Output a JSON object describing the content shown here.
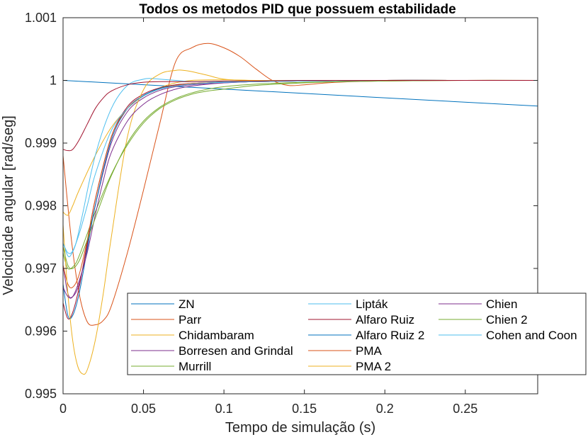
{
  "chart_data": {
    "type": "line",
    "title": "Todos os metodos PID que possuem estabilidade",
    "xlabel": "Tempo de simulação (s)",
    "ylabel": "Velocidade angular [rad/seg]",
    "xlim": [
      0,
      0.295
    ],
    "ylim": [
      0.995,
      1.001
    ],
    "xticks": [
      0,
      0.05,
      0.1,
      0.15,
      0.2,
      0.25
    ],
    "xtick_labels": [
      "0",
      "0.05",
      "0.1",
      "0.15",
      "0.2",
      "0.25"
    ],
    "yticks": [
      0.995,
      0.996,
      0.997,
      0.998,
      0.999,
      1,
      1.001
    ],
    "ytick_labels": [
      "0.995",
      "0.996",
      "0.997",
      "0.998",
      "0.999",
      "1",
      "1.001"
    ],
    "grid": false,
    "legend_position": "bottom-right",
    "legend_columns": 3,
    "series": [
      {
        "name": "ZN",
        "color": "#0072BD",
        "x": [
          0,
          0.295
        ],
        "y": [
          1.0,
          0.99959
        ]
      },
      {
        "name": "Parr",
        "color": "#D95319",
        "x": [
          0,
          0.005,
          0.01,
          0.015,
          0.02,
          0.025,
          0.03,
          0.04,
          0.05,
          0.06,
          0.07,
          0.08,
          0.09,
          0.1,
          0.11,
          0.12,
          0.13,
          0.14,
          0.15,
          0.17,
          0.2,
          0.25,
          0.295
        ],
        "y": [
          0.9988,
          0.9975,
          0.9966,
          0.99615,
          0.9961,
          0.99617,
          0.9964,
          0.99725,
          0.99825,
          0.9993,
          1.0003,
          1.00052,
          1.00059,
          1.00052,
          1.00038,
          1.00018,
          1.0,
          0.99992,
          0.99993,
          0.99997,
          0.99999,
          1.0,
          1.0
        ]
      },
      {
        "name": "Chidambaram",
        "color": "#EDB120",
        "x": [
          0,
          0.003,
          0.006,
          0.01,
          0.02,
          0.03,
          0.04,
          0.05,
          0.06,
          0.07,
          0.08,
          0.1,
          0.12,
          0.15,
          0.2,
          0.25,
          0.295
        ],
        "y": [
          0.9979,
          0.99785,
          0.998,
          0.99825,
          0.9988,
          0.99925,
          0.99955,
          0.99975,
          0.99988,
          0.99996,
          1.0,
          1.00001,
          1.0,
          1.0,
          1.0,
          1.0,
          1.0
        ]
      },
      {
        "name": "Borresen and Grindal",
        "color": "#7E2F8E",
        "x": [
          0,
          0.003,
          0.006,
          0.01,
          0.015,
          0.02,
          0.03,
          0.04,
          0.05,
          0.06,
          0.07,
          0.08,
          0.1,
          0.12,
          0.15,
          0.2,
          0.25,
          0.295
        ],
        "y": [
          0.99705,
          0.9966,
          0.99655,
          0.99675,
          0.99735,
          0.998,
          0.999,
          0.9995,
          0.99972,
          0.99984,
          0.9999,
          0.99993,
          0.99996,
          0.99998,
          0.99999,
          1.0,
          1.0,
          1.0
        ]
      },
      {
        "name": "Murrill",
        "color": "#77AC30",
        "x": [
          0,
          0.003,
          0.007,
          0.01,
          0.015,
          0.02,
          0.03,
          0.04,
          0.05,
          0.06,
          0.07,
          0.08,
          0.09,
          0.1,
          0.12,
          0.15,
          0.2,
          0.25,
          0.295
        ],
        "y": [
          0.99725,
          0.997,
          0.99705,
          0.9972,
          0.99755,
          0.9979,
          0.9985,
          0.99897,
          0.99932,
          0.99955,
          0.99969,
          0.99978,
          0.99983,
          0.99986,
          0.99992,
          0.99996,
          1.0,
          1.0,
          1.0
        ]
      },
      {
        "name": "Lipták",
        "color": "#4DBEEE",
        "x": [
          0,
          0.003,
          0.005,
          0.008,
          0.012,
          0.02,
          0.03,
          0.04,
          0.05,
          0.055,
          0.06,
          0.07,
          0.08,
          0.1,
          0.12,
          0.15,
          0.2,
          0.25,
          0.295
        ],
        "y": [
          0.9974,
          0.9972,
          0.99722,
          0.9974,
          0.99785,
          0.9988,
          0.99955,
          0.99992,
          1.00002,
          1.00003,
          1.00002,
          1.0,
          0.99998,
          0.99998,
          0.99999,
          1.0,
          1.0,
          1.0,
          1.0
        ]
      },
      {
        "name": "Alfaro Ruiz",
        "color": "#A2142F",
        "x": [
          0,
          0.003,
          0.006,
          0.01,
          0.015,
          0.02,
          0.03,
          0.04,
          0.05,
          0.06,
          0.07,
          0.08,
          0.1,
          0.12,
          0.15,
          0.2,
          0.25,
          0.295
        ],
        "y": [
          0.99645,
          0.9962,
          0.9963,
          0.9967,
          0.9974,
          0.9981,
          0.9991,
          0.99958,
          0.99978,
          0.99988,
          0.99993,
          0.99995,
          0.99997,
          0.99998,
          0.99999,
          1.0,
          1.0,
          1.0
        ]
      },
      {
        "name": "Alfaro Ruiz 2",
        "color": "#0072BD",
        "x": [
          0,
          0.003,
          0.006,
          0.01,
          0.015,
          0.02,
          0.03,
          0.04,
          0.05,
          0.06,
          0.07,
          0.08,
          0.1,
          0.12,
          0.15,
          0.2,
          0.25,
          0.295
        ],
        "y": [
          0.99675,
          0.99625,
          0.99625,
          0.9966,
          0.9973,
          0.998,
          0.99905,
          0.99955,
          0.99976,
          0.99987,
          0.99992,
          0.99995,
          0.99997,
          0.99998,
          0.99999,
          1.0,
          1.0,
          1.0
        ]
      },
      {
        "name": "PMA",
        "color": "#D95319",
        "x": [
          0,
          0.003,
          0.006,
          0.01,
          0.015,
          0.02,
          0.03,
          0.04,
          0.05,
          0.06,
          0.07,
          0.08,
          0.1,
          0.12,
          0.15,
          0.2,
          0.25,
          0.295
        ],
        "y": [
          0.99705,
          0.99675,
          0.9967,
          0.9969,
          0.99745,
          0.9981,
          0.9991,
          0.99955,
          0.99975,
          0.99986,
          0.99992,
          0.99995,
          0.99997,
          0.99998,
          0.99999,
          1.0,
          1.0,
          1.0
        ]
      },
      {
        "name": "PMA 2",
        "color": "#EDB120",
        "x": [
          0,
          0.003,
          0.006,
          0.009,
          0.012,
          0.015,
          0.02,
          0.025,
          0.03,
          0.04,
          0.05,
          0.06,
          0.07,
          0.075,
          0.08,
          0.09,
          0.1,
          0.12,
          0.15,
          0.2,
          0.25,
          0.295
        ],
        "y": [
          0.9977,
          0.9966,
          0.99585,
          0.99545,
          0.99532,
          0.99538,
          0.99585,
          0.9966,
          0.9975,
          0.9991,
          0.99985,
          1.0001,
          1.00016,
          1.00016,
          1.00014,
          1.00008,
          1.00002,
          0.99999,
          0.99999,
          1.0,
          1.0,
          1.0
        ]
      },
      {
        "name": "Chien",
        "color": "#7E2F8E",
        "x": [
          0,
          0.003,
          0.006,
          0.01,
          0.015,
          0.02,
          0.025,
          0.03,
          0.04,
          0.05,
          0.06,
          0.07,
          0.08,
          0.1,
          0.12,
          0.15,
          0.2,
          0.25,
          0.295
        ],
        "y": [
          0.9967,
          0.99655,
          0.99655,
          0.9968,
          0.99725,
          0.99785,
          0.9984,
          0.99885,
          0.99935,
          0.99962,
          0.99977,
          0.99986,
          0.99991,
          0.99996,
          0.99998,
          0.99999,
          1.0,
          1.0,
          1.0
        ]
      },
      {
        "name": "Chien 2",
        "color": "#77AC30",
        "x": [
          0,
          0.003,
          0.006,
          0.01,
          0.015,
          0.02,
          0.025,
          0.03,
          0.04,
          0.05,
          0.06,
          0.07,
          0.08,
          0.09,
          0.1,
          0.12,
          0.15,
          0.2,
          0.25,
          0.295
        ],
        "y": [
          0.99735,
          0.99705,
          0.997,
          0.99712,
          0.99745,
          0.9978,
          0.99815,
          0.99848,
          0.999,
          0.99935,
          0.99957,
          0.99971,
          0.9998,
          0.99986,
          0.9999,
          0.99994,
          0.99997,
          0.99999,
          1.0,
          1.0
        ]
      },
      {
        "name": "Cohen and Coon",
        "color": "#4DBEEE",
        "x": [
          0,
          0.003,
          0.006,
          0.01,
          0.015,
          0.02,
          0.03,
          0.04,
          0.05,
          0.06,
          0.07,
          0.08,
          0.1,
          0.12,
          0.15,
          0.2,
          0.25,
          0.295
        ],
        "y": [
          0.9974,
          0.99725,
          0.99728,
          0.99755,
          0.998,
          0.9985,
          0.9992,
          0.99955,
          0.99975,
          0.99986,
          0.99991,
          0.99994,
          0.99997,
          0.99998,
          0.99999,
          1.0,
          1.0,
          1.0
        ]
      },
      {
        "name": "",
        "color": "#A2142F",
        "in_legend": false,
        "x": [
          0,
          0.003,
          0.006,
          0.01,
          0.015,
          0.02,
          0.025,
          0.03,
          0.04,
          0.05,
          0.06,
          0.07,
          0.08,
          0.1,
          0.12,
          0.15,
          0.2,
          0.25,
          0.295
        ],
        "y": [
          0.9989,
          0.99888,
          0.9989,
          0.99905,
          0.9993,
          0.99955,
          0.99972,
          0.99983,
          0.99993,
          0.99997,
          0.99998,
          0.99998,
          0.99998,
          0.99999,
          0.99999,
          1.0,
          1.0,
          1.0,
          1.0
        ]
      }
    ]
  }
}
